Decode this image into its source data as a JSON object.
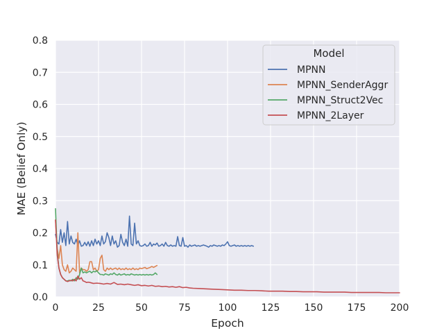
{
  "chart_data": {
    "type": "line",
    "title": "",
    "xlabel": "Epoch",
    "ylabel": "MAE (Belief Only)",
    "xlim": [
      0,
      200
    ],
    "ylim": [
      0,
      0.8
    ],
    "xticks": [
      "0",
      "25",
      "50",
      "75",
      "100",
      "125",
      "150",
      "175",
      "200"
    ],
    "yticks": [
      "0.0",
      "0.1",
      "0.2",
      "0.3",
      "0.4",
      "0.5",
      "0.6",
      "0.7",
      "0.8"
    ],
    "grid": true,
    "legend": {
      "title": "Model",
      "placement": "top-right"
    },
    "background_color": "#eaeaf2",
    "grid_color": "#ffffff",
    "series": [
      {
        "name": "MPNN",
        "color": "#4c72b0",
        "x": [
          0,
          1,
          2,
          3,
          4,
          5,
          6,
          7,
          8,
          9,
          10,
          11,
          12,
          13,
          14,
          15,
          16,
          17,
          18,
          19,
          20,
          21,
          22,
          23,
          24,
          25,
          26,
          27,
          28,
          29,
          30,
          31,
          32,
          33,
          34,
          35,
          36,
          37,
          38,
          39,
          40,
          41,
          42,
          43,
          44,
          45,
          46,
          47,
          48,
          49,
          50,
          51,
          52,
          53,
          54,
          55,
          56,
          57,
          58,
          59,
          60,
          61,
          62,
          63,
          64,
          65,
          66,
          67,
          68,
          69,
          70,
          71,
          72,
          73,
          74,
          75,
          76,
          77,
          78,
          79,
          80,
          81,
          82,
          83,
          84,
          85,
          86,
          87,
          88,
          89,
          90,
          91,
          92,
          93,
          94,
          95,
          96,
          97,
          98,
          99,
          100,
          101,
          102,
          103,
          104,
          105,
          106,
          107,
          108,
          109,
          110,
          111,
          112,
          113,
          114,
          115
        ],
        "y": [
          0.195,
          0.17,
          0.165,
          0.21,
          0.17,
          0.2,
          0.16,
          0.235,
          0.165,
          0.19,
          0.17,
          0.165,
          0.18,
          0.16,
          0.175,
          0.158,
          0.16,
          0.17,
          0.16,
          0.172,
          0.158,
          0.175,
          0.16,
          0.18,
          0.165,
          0.175,
          0.16,
          0.19,
          0.165,
          0.172,
          0.2,
          0.185,
          0.16,
          0.19,
          0.165,
          0.175,
          0.155,
          0.16,
          0.195,
          0.17,
          0.16,
          0.18,
          0.158,
          0.252,
          0.165,
          0.16,
          0.23,
          0.165,
          0.175,
          0.16,
          0.158,
          0.16,
          0.165,
          0.158,
          0.16,
          0.17,
          0.158,
          0.165,
          0.162,
          0.168,
          0.158,
          0.16,
          0.165,
          0.158,
          0.17,
          0.16,
          0.158,
          0.162,
          0.158,
          0.16,
          0.158,
          0.188,
          0.16,
          0.158,
          0.185,
          0.158,
          0.16,
          0.155,
          0.162,
          0.158,
          0.16,
          0.162,
          0.158,
          0.16,
          0.158,
          0.16,
          0.162,
          0.16,
          0.158,
          0.155,
          0.16,
          0.158,
          0.162,
          0.16,
          0.158,
          0.16,
          0.158,
          0.162,
          0.16,
          0.165,
          0.172,
          0.16,
          0.158,
          0.16,
          0.162,
          0.158,
          0.16,
          0.158,
          0.16,
          0.158,
          0.16,
          0.158,
          0.16,
          0.158,
          0.16,
          0.158
        ]
      },
      {
        "name": "MPNN_SenderAggr",
        "color": "#dd8452",
        "x": [
          0,
          1,
          2,
          3,
          4,
          5,
          6,
          7,
          8,
          9,
          10,
          11,
          12,
          13,
          14,
          15,
          16,
          17,
          18,
          19,
          20,
          21,
          22,
          23,
          24,
          25,
          26,
          27,
          28,
          29,
          30,
          31,
          32,
          33,
          34,
          35,
          36,
          37,
          38,
          39,
          40,
          41,
          42,
          43,
          44,
          45,
          46,
          47,
          48,
          49,
          50,
          51,
          52,
          53,
          54,
          55,
          56,
          57,
          58,
          59
        ],
        "y": [
          0.24,
          0.15,
          0.12,
          0.16,
          0.1,
          0.085,
          0.08,
          0.1,
          0.075,
          0.08,
          0.09,
          0.085,
          0.08,
          0.2,
          0.075,
          0.09,
          0.085,
          0.085,
          0.08,
          0.085,
          0.11,
          0.11,
          0.085,
          0.09,
          0.08,
          0.085,
          0.12,
          0.13,
          0.085,
          0.08,
          0.09,
          0.085,
          0.09,
          0.085,
          0.088,
          0.09,
          0.085,
          0.09,
          0.085,
          0.088,
          0.085,
          0.09,
          0.085,
          0.088,
          0.085,
          0.09,
          0.085,
          0.088,
          0.085,
          0.09,
          0.088,
          0.09,
          0.092,
          0.088,
          0.09,
          0.092,
          0.095,
          0.092,
          0.095,
          0.098
        ]
      },
      {
        "name": "MPNN_Struct2Vec",
        "color": "#55a868",
        "x": [
          0,
          1,
          2,
          3,
          4,
          5,
          6,
          7,
          8,
          9,
          10,
          11,
          12,
          13,
          14,
          15,
          16,
          17,
          18,
          19,
          20,
          21,
          22,
          23,
          24,
          25,
          26,
          27,
          28,
          29,
          30,
          31,
          32,
          33,
          34,
          35,
          36,
          37,
          38,
          39,
          40,
          41,
          42,
          43,
          44,
          45,
          46,
          47,
          48,
          49,
          50,
          51,
          52,
          53,
          54,
          55,
          56,
          57,
          58,
          59
        ],
        "y": [
          0.275,
          0.14,
          0.09,
          0.07,
          0.06,
          0.055,
          0.05,
          0.05,
          0.052,
          0.05,
          0.055,
          0.05,
          0.06,
          0.055,
          0.07,
          0.09,
          0.075,
          0.078,
          0.075,
          0.078,
          0.08,
          0.075,
          0.08,
          0.078,
          0.082,
          0.075,
          0.07,
          0.07,
          0.068,
          0.072,
          0.07,
          0.068,
          0.072,
          0.07,
          0.075,
          0.07,
          0.068,
          0.072,
          0.068,
          0.07,
          0.072,
          0.068,
          0.07,
          0.068,
          0.072,
          0.07,
          0.068,
          0.07,
          0.068,
          0.07,
          0.068,
          0.07,
          0.068,
          0.07,
          0.068,
          0.07,
          0.068,
          0.07,
          0.075,
          0.07
        ]
      },
      {
        "name": "MPNN_2Layer",
        "color": "#c44e52",
        "x": [
          0,
          1,
          2,
          3,
          4,
          5,
          6,
          7,
          8,
          9,
          10,
          11,
          12,
          13,
          14,
          15,
          16,
          17,
          18,
          19,
          20,
          22,
          24,
          26,
          28,
          30,
          32,
          34,
          36,
          38,
          40,
          42,
          44,
          46,
          48,
          50,
          52,
          54,
          56,
          58,
          60,
          62,
          64,
          66,
          68,
          70,
          72,
          74,
          76,
          78,
          80,
          84,
          88,
          92,
          96,
          100,
          104,
          108,
          112,
          116,
          120,
          124,
          128,
          132,
          136,
          140,
          144,
          148,
          152,
          156,
          160,
          164,
          168,
          172,
          176,
          180,
          184,
          188,
          192,
          196,
          200
        ],
        "y": [
          0.24,
          0.13,
          0.09,
          0.07,
          0.06,
          0.055,
          0.05,
          0.048,
          0.05,
          0.052,
          0.05,
          0.055,
          0.05,
          0.065,
          0.055,
          0.06,
          0.05,
          0.048,
          0.045,
          0.046,
          0.045,
          0.042,
          0.043,
          0.042,
          0.04,
          0.042,
          0.04,
          0.045,
          0.039,
          0.04,
          0.038,
          0.04,
          0.038,
          0.036,
          0.038,
          0.035,
          0.036,
          0.034,
          0.036,
          0.033,
          0.034,
          0.032,
          0.033,
          0.031,
          0.032,
          0.03,
          0.032,
          0.029,
          0.03,
          0.028,
          0.027,
          0.026,
          0.025,
          0.024,
          0.023,
          0.022,
          0.021,
          0.021,
          0.02,
          0.02,
          0.019,
          0.018,
          0.018,
          0.018,
          0.017,
          0.017,
          0.016,
          0.016,
          0.016,
          0.015,
          0.015,
          0.015,
          0.015,
          0.014,
          0.014,
          0.014,
          0.014,
          0.014,
          0.013,
          0.013,
          0.013
        ]
      }
    ]
  }
}
